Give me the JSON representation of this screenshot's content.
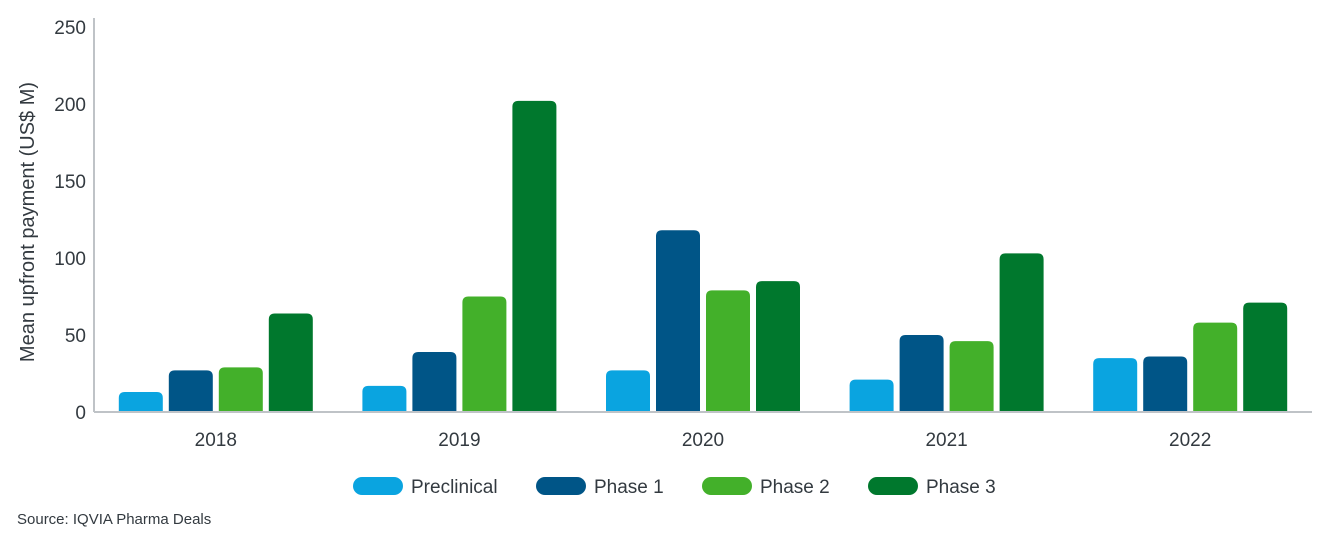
{
  "chart_data": {
    "type": "bar",
    "title": "",
    "xlabel": "",
    "ylabel": "Mean upfront payment (US$ M)",
    "categories": [
      "2018",
      "2019",
      "2020",
      "2021",
      "2022"
    ],
    "series": [
      {
        "name": "Preclinical",
        "color": "#0aa4e0",
        "values": [
          13,
          17,
          27,
          21,
          35
        ]
      },
      {
        "name": "Phase 1",
        "color": "#005587",
        "values": [
          27,
          39,
          118,
          50,
          36
        ]
      },
      {
        "name": "Phase 2",
        "color": "#43b02a",
        "values": [
          29,
          75,
          79,
          46,
          58
        ]
      },
      {
        "name": "Phase 3",
        "color": "#00782d",
        "values": [
          64,
          202,
          85,
          103,
          71
        ]
      }
    ],
    "ylim": [
      0,
      250
    ],
    "yticks": [
      0,
      50,
      100,
      150,
      200,
      250
    ],
    "grid": false,
    "legend_position": "bottom-center"
  },
  "source": "Source: IQVIA Pharma Deals"
}
